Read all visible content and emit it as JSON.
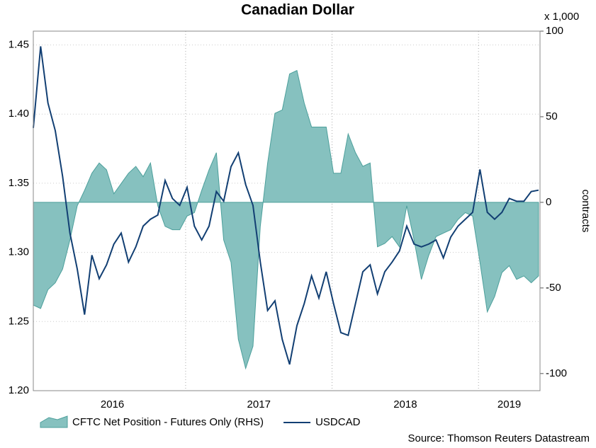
{
  "chart_data": {
    "type": "dual-axis-area-line",
    "title": "Canadian Dollar",
    "y2_unit": "x 1,000",
    "y2_label": "contracts",
    "source": "Source: Thomson Reuters Datastream",
    "x": [
      2015.96,
      2016.01,
      2016.06,
      2016.11,
      2016.16,
      2016.21,
      2016.26,
      2016.31,
      2016.36,
      2016.41,
      2016.46,
      2016.51,
      2016.56,
      2016.61,
      2016.66,
      2016.71,
      2016.76,
      2016.81,
      2016.86,
      2016.91,
      2016.96,
      2017.01,
      2017.06,
      2017.11,
      2017.16,
      2017.21,
      2017.26,
      2017.31,
      2017.36,
      2017.41,
      2017.46,
      2017.51,
      2017.56,
      2017.61,
      2017.66,
      2017.71,
      2017.76,
      2017.81,
      2017.86,
      2017.91,
      2017.96,
      2018.01,
      2018.06,
      2018.11,
      2018.16,
      2018.21,
      2018.26,
      2018.31,
      2018.36,
      2018.41,
      2018.46,
      2018.51,
      2018.56,
      2018.61,
      2018.66,
      2018.71,
      2018.76,
      2018.81,
      2018.86,
      2018.91,
      2018.96,
      2019.01,
      2019.06,
      2019.11,
      2019.16,
      2019.21,
      2019.26,
      2019.31,
      2019.36,
      2019.41
    ],
    "xlim": [
      2015.96,
      2019.42
    ],
    "xticks": [
      {
        "value": 2016.5,
        "label": "2016"
      },
      {
        "value": 2017.5,
        "label": "2017"
      },
      {
        "value": 2018.5,
        "label": "2018"
      },
      {
        "value": 2019.21,
        "label": "2019"
      }
    ],
    "xgrid": [
      2017,
      2018,
      2019
    ],
    "ylim": [
      1.2,
      1.46
    ],
    "yticks": [
      {
        "value": 1.2,
        "label": "1.20"
      },
      1.25,
      {
        "value": 1.3,
        "label": "1.30"
      },
      1.35,
      {
        "value": 1.4,
        "label": "1.40"
      },
      1.45
    ],
    "y2lim": [
      -110,
      100
    ],
    "y2ticks": [
      -100,
      -50,
      0,
      50,
      100
    ],
    "series": [
      {
        "name": "CFTC Net Position - Futures Only (RHS)",
        "type": "area",
        "axis": "y2",
        "color": "#86c1bf",
        "values": [
          -60,
          -62,
          -51,
          -47,
          -39,
          -22,
          -2,
          7,
          17,
          23,
          19,
          5,
          11,
          17,
          21,
          15,
          23,
          -2,
          -14,
          -16,
          -16,
          -8,
          -6,
          7,
          19,
          29,
          -22,
          -35,
          -80,
          -97,
          -84,
          -14,
          23,
          52,
          54,
          75,
          77,
          58,
          44,
          44,
          44,
          17,
          17,
          40,
          29,
          21,
          23,
          -26,
          -24,
          -20,
          -26,
          -2,
          -22,
          -45,
          -31,
          -20,
          -18,
          -16,
          -10,
          -6,
          -8,
          -35,
          -64,
          -55,
          -41,
          -37,
          -45,
          -43,
          -47,
          -43
        ]
      },
      {
        "name": "USDCAD",
        "type": "line",
        "color": "#123f73",
        "values": [
          1.39,
          1.449,
          1.408,
          1.388,
          1.355,
          1.314,
          1.288,
          1.255,
          1.298,
          1.281,
          1.291,
          1.306,
          1.314,
          1.293,
          1.304,
          1.319,
          1.324,
          1.327,
          1.352,
          1.339,
          1.334,
          1.347,
          1.319,
          1.309,
          1.319,
          1.344,
          1.337,
          1.362,
          1.372,
          1.349,
          1.334,
          1.293,
          1.258,
          1.265,
          1.237,
          1.219,
          1.247,
          1.263,
          1.283,
          1.267,
          1.286,
          1.263,
          1.242,
          1.24,
          1.263,
          1.286,
          1.291,
          1.27,
          1.286,
          1.293,
          1.301,
          1.319,
          1.306,
          1.304,
          1.306,
          1.309,
          1.296,
          1.311,
          1.319,
          1.324,
          1.329,
          1.36,
          1.329,
          1.324,
          1.329,
          1.339,
          1.337,
          1.337,
          1.344,
          1.345
        ]
      }
    ]
  }
}
